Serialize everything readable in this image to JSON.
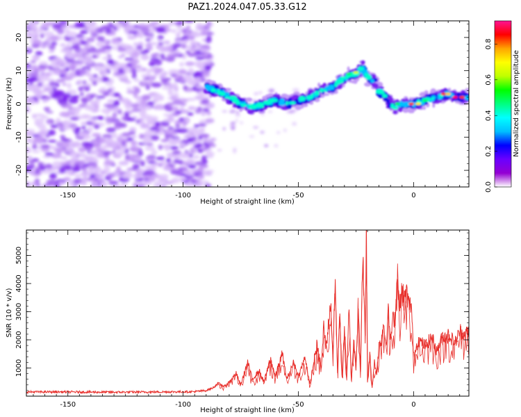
{
  "title": "PAZ1.2024.047.05.33.G12",
  "colors": {
    "snr_line": "#e8302c",
    "spectrogram_low": "#8a2be2",
    "colormap": [
      "#ffffff",
      "#9400d3",
      "#6a00ff",
      "#0000ff",
      "#00bfff",
      "#00ffff",
      "#00ff80",
      "#00ff00",
      "#bfff00",
      "#ffff00",
      "#ffa500",
      "#ff0000",
      "#ff1493"
    ]
  },
  "chart_data": [
    {
      "type": "heatmap",
      "xlabel": "Height of straight line (km)",
      "ylabel": "Frequency (Hz)",
      "xlim": [
        -168,
        24
      ],
      "ylim": [
        -25,
        25
      ],
      "xticks": [
        -150,
        -100,
        -50,
        0
      ],
      "yticks": [
        -20,
        -10,
        0,
        10,
        20
      ],
      "ridge": {
        "x": [
          -90,
          -85,
          -80,
          -75,
          -70,
          -65,
          -60,
          -55,
          -50,
          -45,
          -40,
          -35,
          -30,
          -25,
          -22,
          -20,
          -17,
          -15,
          -12,
          -10,
          -8,
          -5,
          0,
          5,
          10,
          15,
          20,
          24
        ],
        "y": [
          5,
          4,
          2,
          0,
          -1,
          0,
          1,
          0,
          1,
          2,
          4,
          5,
          8,
          9,
          11,
          8,
          7,
          4,
          2,
          0,
          -1,
          0,
          0,
          1,
          2,
          3,
          2,
          2
        ]
      },
      "colorbar": {
        "label": "Normalized spectral amplitude",
        "range": [
          0.0,
          0.93
        ],
        "ticks": [
          "0.0",
          "0.2",
          "0.4",
          "0.6",
          "0.8"
        ]
      }
    },
    {
      "type": "line",
      "xlabel": "Height of straight line (km)",
      "ylabel": "SNR (10 * v/v)",
      "xlim": [
        -168,
        24
      ],
      "ylim": [
        0,
        5900
      ],
      "xticks": [
        -150,
        -100,
        -50,
        0
      ],
      "yticks": [
        1000,
        2000,
        3000,
        4000,
        5000
      ],
      "series": [
        {
          "x": [
            -168,
            -150,
            -130,
            -110,
            -95,
            -90,
            -87,
            -85,
            -82,
            -80,
            -77,
            -75,
            -72,
            -70,
            -67,
            -65,
            -62,
            -60,
            -57,
            -55,
            -52,
            -50,
            -47,
            -45,
            -42,
            -40,
            -39,
            -38,
            -36,
            -35,
            -34,
            -33,
            -32,
            -31,
            -30,
            -29,
            -28,
            -27,
            -26,
            -25,
            -24,
            -23,
            -22,
            -21,
            -20.5,
            -20,
            -19,
            -18,
            -17,
            -16,
            -15,
            -14,
            -13,
            -12,
            -11,
            -10,
            -9,
            -8,
            -7,
            -6,
            -5.5,
            -5,
            -4,
            -3,
            -2,
            -1,
            0,
            2,
            5,
            8,
            10,
            12,
            15,
            18,
            20,
            22,
            24
          ],
          "y": [
            150,
            150,
            140,
            150,
            160,
            200,
            300,
            450,
            350,
            500,
            800,
            400,
            1200,
            600,
            900,
            500,
            1300,
            700,
            1500,
            600,
            1200,
            700,
            1400,
            400,
            1800,
            1000,
            2500,
            1700,
            3300,
            1500,
            4000,
            800,
            3000,
            600,
            2500,
            700,
            3100,
            500,
            2000,
            1000,
            3300,
            900,
            5200,
            1800,
            5900,
            500,
            1500,
            300,
            1200,
            800,
            1800,
            2000,
            2600,
            1800,
            3000,
            2000,
            2700,
            2800,
            4300,
            3000,
            3800,
            3600,
            3400,
            3700,
            3200,
            3300,
            1400,
            2000,
            1800,
            2100,
            1600,
            2000,
            2200,
            1900,
            2300,
            2200,
            2300
          ]
        }
      ]
    }
  ]
}
